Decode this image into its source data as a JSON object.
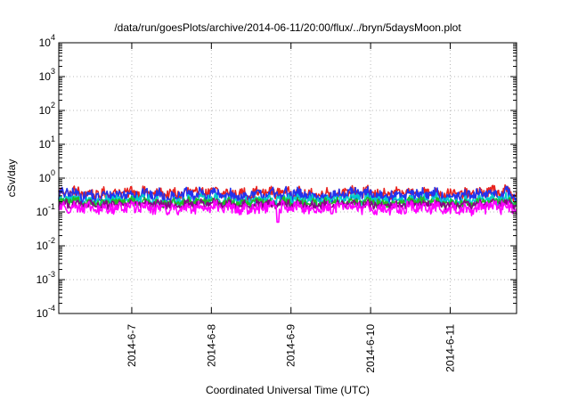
{
  "chart_data": {
    "type": "line",
    "title": "/data/run/goesPlots/archive/2014-06-11/20:00/flux/../bryn/5daysMoon.plot",
    "xlabel": "Coordinated Universal Time (UTC)",
    "ylabel": "cSv/day",
    "y_scale": "log",
    "ylim": [
      0.0001,
      10000
    ],
    "y_ticks": [
      {
        "value": 0.0001,
        "base": "10",
        "exp": "-4"
      },
      {
        "value": 0.001,
        "base": "10",
        "exp": "-3"
      },
      {
        "value": 0.01,
        "base": "10",
        "exp": "-2"
      },
      {
        "value": 0.1,
        "base": "10",
        "exp": "-1"
      },
      {
        "value": 1,
        "base": "10",
        "exp": "0"
      },
      {
        "value": 10,
        "base": "10",
        "exp": "1"
      },
      {
        "value": 100,
        "base": "10",
        "exp": "2"
      },
      {
        "value": 1000,
        "base": "10",
        "exp": "3"
      },
      {
        "value": 10000,
        "base": "10",
        "exp": "4"
      }
    ],
    "x_unit": "days",
    "xlim": [
      "2014-06-06 02:00",
      "2014-06-11 20:00"
    ],
    "x_ticks": [
      {
        "value": "2014-06-07",
        "label": "2014-6-7"
      },
      {
        "value": "2014-06-08",
        "label": "2014-6-8"
      },
      {
        "value": "2014-06-09",
        "label": "2014-6-9"
      },
      {
        "value": "2014-06-10",
        "label": "2014-6-10"
      },
      {
        "value": "2014-06-11",
        "label": "2014-6-11"
      }
    ],
    "grid": true,
    "series": [
      {
        "color": "#e8231e",
        "level": 0.36,
        "jitter": 0.13,
        "dip": null
      },
      {
        "color": "#2233ee",
        "level": 0.31,
        "jitter": 0.15,
        "dip": null
      },
      {
        "color": "#00cccc",
        "level": 0.22,
        "jitter": 0.12,
        "dip": null
      },
      {
        "color": "#22bb22",
        "level": 0.19,
        "jitter": 0.1,
        "dip": null
      },
      {
        "color": "#880088",
        "level": 0.165,
        "jitter": 0.1,
        "dip": null
      },
      {
        "color": "#ff00ff",
        "level": 0.13,
        "jitter": 0.14,
        "dip": {
          "x": "2014-06-08 20:00",
          "value": 0.05
        }
      }
    ]
  }
}
